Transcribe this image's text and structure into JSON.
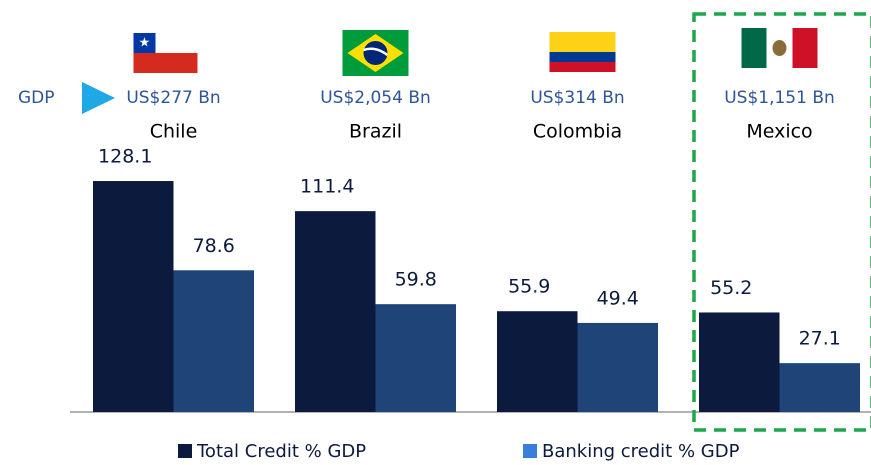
{
  "chart_data": {
    "type": "bar",
    "categories": [
      "Chile",
      "Brazil",
      "Colombia",
      "Mexico"
    ],
    "gdp_title": "GDP",
    "gdp_labels": [
      "US$277 Bn",
      "US$2,054 Bn",
      "US$314 Bn",
      "US$1,151 Bn"
    ],
    "series": [
      {
        "name": "Total Credit % GDP",
        "color": "#0c1a3d",
        "values": [
          128.1,
          111.4,
          55.9,
          55.2
        ]
      },
      {
        "name": "Banking credit % GDP",
        "color": "#1f4477",
        "values": [
          78.6,
          59.8,
          49.4,
          27.1
        ]
      }
    ],
    "highlight_index": 3,
    "highlight_color": "#1fa64a"
  }
}
